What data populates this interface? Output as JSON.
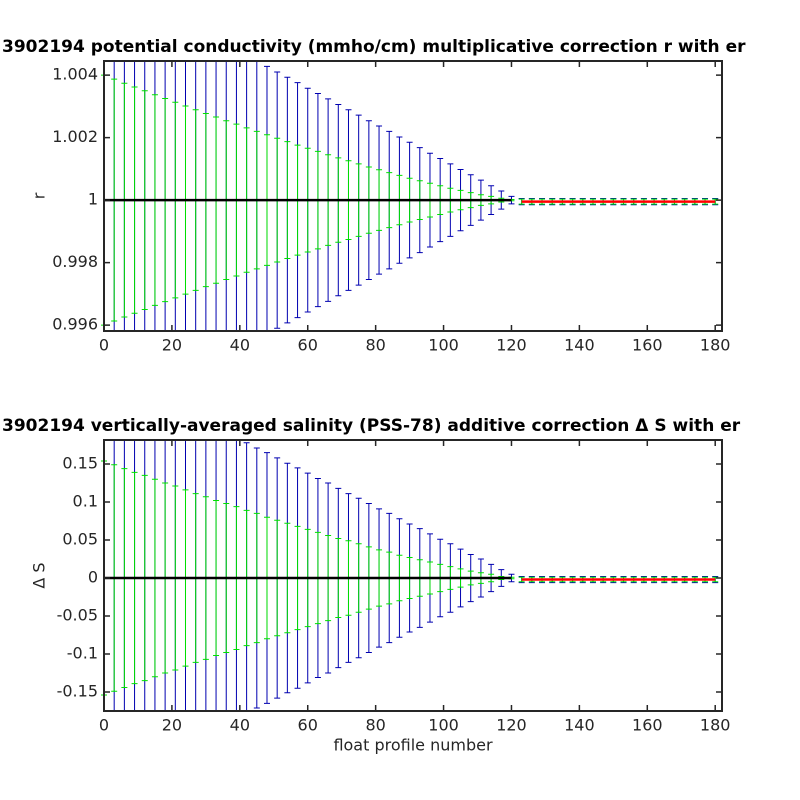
{
  "chart_data": [
    {
      "type": "errorbar",
      "title": "3902194 potential conductivity (mmho/cm) multiplicative correction r with er",
      "ylabel": "r",
      "xlim": [
        0,
        182
      ],
      "xticks": [
        0,
        20,
        40,
        60,
        80,
        100,
        120,
        140,
        160,
        180
      ],
      "ylim": [
        0.99581,
        1.00445
      ],
      "yticks": [
        0.996,
        0.998,
        1,
        1.002,
        1.004
      ],
      "x": [
        0,
        3,
        6,
        9,
        12,
        15,
        18,
        21,
        24,
        27,
        30,
        33,
        36,
        39,
        42,
        45,
        48,
        51,
        54,
        57,
        60,
        63,
        66,
        69,
        72,
        75,
        78,
        81,
        84,
        87,
        90,
        93,
        96,
        99,
        102,
        105,
        108,
        111,
        114,
        117,
        120,
        123,
        126,
        129,
        132,
        135,
        138,
        141,
        144,
        147,
        150,
        153,
        156,
        159,
        162,
        165,
        168,
        171,
        174,
        177,
        180
      ],
      "series": [
        {
          "color": "#0000b0",
          "values": [
            1,
            1,
            1,
            1,
            1,
            1,
            1,
            1,
            1,
            1,
            1,
            1,
            1,
            1,
            1,
            1,
            1,
            1,
            1,
            1,
            1,
            1,
            1,
            1,
            1,
            1,
            1,
            1,
            1,
            1,
            1,
            1,
            1,
            1,
            1,
            1,
            1,
            1,
            1,
            1,
            1,
            0.99995,
            0.99995,
            0.99995,
            0.99995,
            0.99995,
            0.99995,
            0.99995,
            0.99995,
            0.99995,
            0.99995,
            0.99995,
            0.99995,
            0.99995,
            0.99995,
            0.99995,
            0.99995,
            0.99995,
            0.99995,
            0.99995,
            0.99995
          ],
          "errors": [
            0.00705,
            0.00688,
            0.0067,
            0.00653,
            0.00636,
            0.00618,
            0.00601,
            0.00584,
            0.00566,
            0.00549,
            0.00532,
            0.00514,
            0.00497,
            0.0048,
            0.00462,
            0.00445,
            0.00428,
            0.0041,
            0.00393,
            0.00376,
            0.00358,
            0.00341,
            0.00324,
            0.00306,
            0.00289,
            0.00272,
            0.00254,
            0.00237,
            0.0022,
            0.00202,
            0.00185,
            0.00168,
            0.0015,
            0.00133,
            0.00116,
            0.00098,
            0.00081,
            0.00064,
            0.00046,
            0.00029,
            0.00012,
            0.0001,
            0.0001,
            0.0001,
            0.0001,
            0.0001,
            0.0001,
            0.0001,
            0.0001,
            0.0001,
            0.0001,
            0.0001,
            0.0001,
            0.0001,
            0.0001,
            0.0001,
            0.0001,
            0.0001,
            0.0001,
            0.0001,
            0.0001
          ]
        },
        {
          "color": "#00e000",
          "values": [
            1,
            1,
            1,
            1,
            1,
            1,
            1,
            1,
            1,
            1,
            1,
            1,
            1,
            1,
            1,
            1,
            1,
            1,
            1,
            1,
            1,
            1,
            1,
            1,
            1,
            1,
            1,
            1,
            1,
            1,
            1,
            1,
            1,
            1,
            1,
            1,
            1,
            1,
            1,
            1,
            1,
            0.99995,
            0.99995,
            0.99995,
            0.99995,
            0.99995,
            0.99995,
            0.99995,
            0.99995,
            0.99995,
            0.99995,
            0.99995,
            0.99995,
            0.99995,
            0.99995,
            0.99995,
            0.99995,
            0.99995,
            0.99995,
            0.99995,
            0.99995
          ],
          "errors": [
            0.004,
            0.00387,
            0.00374,
            0.00362,
            0.0035,
            0.00337,
            0.00325,
            0.00313,
            0.00301,
            0.00289,
            0.00277,
            0.00266,
            0.00254,
            0.00243,
            0.00231,
            0.0022,
            0.00209,
            0.00198,
            0.00187,
            0.00176,
            0.00166,
            0.00156,
            0.00145,
            0.00135,
            0.00126,
            0.00116,
            0.00106,
            0.00097,
            0.00088,
            0.00079,
            0.0007,
            0.00062,
            0.00054,
            0.00046,
            0.00038,
            0.00031,
            0.00024,
            0.00017,
            0.00012,
            6e-05,
            2e-05,
            8e-05,
            8e-05,
            8e-05,
            8e-05,
            8e-05,
            8e-05,
            8e-05,
            8e-05,
            8e-05,
            8e-05,
            8e-05,
            8e-05,
            8e-05,
            8e-05,
            8e-05,
            8e-05,
            8e-05,
            8e-05,
            8e-05,
            8e-05
          ]
        },
        {
          "color": "#000000",
          "values": [
            1,
            1,
            1,
            1,
            1,
            1,
            1,
            1,
            1,
            1,
            1,
            1,
            1,
            1,
            1,
            1,
            1,
            1,
            1,
            1,
            1,
            1,
            1,
            1,
            1,
            1,
            1,
            1,
            1,
            1,
            1,
            1,
            1,
            1,
            1,
            1,
            1,
            1,
            1,
            1,
            1,
            null,
            null,
            null,
            null,
            null,
            null,
            null,
            null,
            null,
            null,
            null,
            null,
            null,
            null,
            null,
            null,
            null,
            null,
            null,
            null
          ]
        },
        {
          "color": "#ff0000",
          "values": [
            null,
            null,
            null,
            null,
            null,
            null,
            null,
            null,
            null,
            null,
            null,
            null,
            null,
            null,
            null,
            null,
            null,
            null,
            null,
            null,
            null,
            null,
            null,
            null,
            null,
            null,
            null,
            null,
            null,
            null,
            null,
            null,
            null,
            null,
            null,
            null,
            null,
            null,
            null,
            null,
            null,
            0.99995,
            0.99995,
            0.99995,
            0.99995,
            0.99995,
            0.99995,
            0.99995,
            0.99995,
            0.99995,
            0.99995,
            0.99995,
            0.99995,
            0.99995,
            0.99995,
            0.99995,
            0.99995,
            0.99995,
            0.99995,
            0.99995,
            0.99995
          ]
        }
      ]
    },
    {
      "type": "errorbar",
      "title": "3902194 vertically-averaged salinity (PSS-78) additive correction Δ S with er",
      "ylabel": "Δ S",
      "xlabel": "float profile number",
      "xlim": [
        0,
        182
      ],
      "xticks": [
        0,
        20,
        40,
        60,
        80,
        100,
        120,
        140,
        160,
        180
      ],
      "ylim": [
        -0.175,
        0.1816
      ],
      "yticks": [
        -0.15,
        -0.1,
        -0.05,
        0,
        0.05,
        0.1,
        0.15
      ],
      "x": [
        0,
        3,
        6,
        9,
        12,
        15,
        18,
        21,
        24,
        27,
        30,
        33,
        36,
        39,
        42,
        45,
        48,
        51,
        54,
        57,
        60,
        63,
        66,
        69,
        72,
        75,
        78,
        81,
        84,
        87,
        90,
        93,
        96,
        99,
        102,
        105,
        108,
        111,
        114,
        117,
        120,
        123,
        126,
        129,
        132,
        135,
        138,
        141,
        144,
        147,
        150,
        153,
        156,
        159,
        162,
        165,
        168,
        171,
        174,
        177,
        180
      ],
      "series": [
        {
          "color": "#0000b0",
          "values": [
            0,
            0,
            0,
            0,
            0,
            0,
            0,
            0,
            0,
            0,
            0,
            0,
            0,
            0,
            0,
            0,
            0,
            0,
            0,
            0,
            0,
            0,
            0,
            0,
            0,
            0,
            0,
            0,
            0,
            0,
            0,
            0,
            0,
            0,
            0,
            0,
            0,
            0,
            0,
            0,
            0,
            -0.002,
            -0.002,
            -0.002,
            -0.002,
            -0.002,
            -0.002,
            -0.002,
            -0.002,
            -0.002,
            -0.002,
            -0.002,
            -0.002,
            -0.002,
            -0.002,
            -0.002,
            -0.002,
            -0.002,
            -0.002,
            -0.002,
            -0.002
          ],
          "errors": [
            0.271,
            0.265,
            0.258,
            0.251,
            0.245,
            0.238,
            0.231,
            0.225,
            0.218,
            0.211,
            0.205,
            0.198,
            0.191,
            0.185,
            0.178,
            0.171,
            0.165,
            0.158,
            0.151,
            0.145,
            0.138,
            0.131,
            0.125,
            0.118,
            0.111,
            0.105,
            0.098,
            0.091,
            0.085,
            0.078,
            0.071,
            0.065,
            0.058,
            0.051,
            0.045,
            0.038,
            0.031,
            0.025,
            0.018,
            0.011,
            0.005,
            0.004,
            0.004,
            0.004,
            0.004,
            0.004,
            0.004,
            0.004,
            0.004,
            0.004,
            0.004,
            0.004,
            0.004,
            0.004,
            0.004,
            0.004,
            0.004,
            0.004,
            0.004,
            0.004,
            0.004
          ]
        },
        {
          "color": "#00e000",
          "values": [
            0,
            0,
            0,
            0,
            0,
            0,
            0,
            0,
            0,
            0,
            0,
            0,
            0,
            0,
            0,
            0,
            0,
            0,
            0,
            0,
            0,
            0,
            0,
            0,
            0,
            0,
            0,
            0,
            0,
            0,
            0,
            0,
            0,
            0,
            0,
            0,
            0,
            0,
            0,
            0,
            0,
            -0.002,
            -0.002,
            -0.002,
            -0.002,
            -0.002,
            -0.002,
            -0.002,
            -0.002,
            -0.002,
            -0.002,
            -0.002,
            -0.002,
            -0.002,
            -0.002,
            -0.002,
            -0.002,
            -0.002,
            -0.002,
            -0.002,
            -0.002
          ],
          "errors": [
            0.154,
            0.149,
            0.144,
            0.139,
            0.135,
            0.13,
            0.125,
            0.121,
            0.116,
            0.111,
            0.107,
            0.102,
            0.098,
            0.094,
            0.089,
            0.085,
            0.08,
            0.076,
            0.072,
            0.068,
            0.064,
            0.06,
            0.056,
            0.052,
            0.049,
            0.045,
            0.041,
            0.037,
            0.034,
            0.03,
            0.027,
            0.024,
            0.021,
            0.018,
            0.015,
            0.012,
            0.009,
            0.007,
            0.005,
            0.002,
            0.001,
            0.003,
            0.003,
            0.003,
            0.003,
            0.003,
            0.003,
            0.003,
            0.003,
            0.003,
            0.003,
            0.003,
            0.003,
            0.003,
            0.003,
            0.003,
            0.003,
            0.003,
            0.003,
            0.003,
            0.003
          ]
        },
        {
          "color": "#000000",
          "values": [
            0,
            0,
            0,
            0,
            0,
            0,
            0,
            0,
            0,
            0,
            0,
            0,
            0,
            0,
            0,
            0,
            0,
            0,
            0,
            0,
            0,
            0,
            0,
            0,
            0,
            0,
            0,
            0,
            0,
            0,
            0,
            0,
            0,
            0,
            0,
            0,
            0,
            0,
            0,
            0,
            0,
            null,
            null,
            null,
            null,
            null,
            null,
            null,
            null,
            null,
            null,
            null,
            null,
            null,
            null,
            null,
            null,
            null,
            null,
            null,
            null
          ]
        },
        {
          "color": "#ff0000",
          "values": [
            null,
            null,
            null,
            null,
            null,
            null,
            null,
            null,
            null,
            null,
            null,
            null,
            null,
            null,
            null,
            null,
            null,
            null,
            null,
            null,
            null,
            null,
            null,
            null,
            null,
            null,
            null,
            null,
            null,
            null,
            null,
            null,
            null,
            null,
            null,
            null,
            null,
            null,
            null,
            null,
            null,
            -0.002,
            -0.002,
            -0.002,
            -0.002,
            -0.002,
            -0.002,
            -0.002,
            -0.002,
            -0.002,
            -0.002,
            -0.002,
            -0.002,
            -0.002,
            -0.002,
            -0.002,
            -0.002,
            -0.002,
            -0.002,
            -0.002,
            -0.002
          ]
        }
      ]
    }
  ]
}
